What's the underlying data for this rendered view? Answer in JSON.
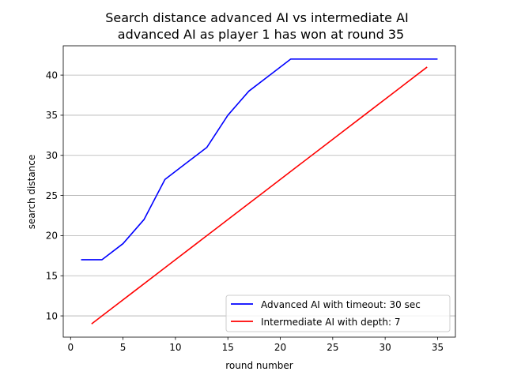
{
  "chart_data": {
    "type": "line",
    "title": "Search distance advanced AI vs intermediate AI",
    "subtitle": "advanced AI as player 1 has won at round 35",
    "xlabel": "round number",
    "ylabel": "search distance",
    "xlim": [
      -0.7,
      36.7
    ],
    "ylim": [
      7.35,
      43.65
    ],
    "xticks": [
      0,
      5,
      10,
      15,
      20,
      25,
      30,
      35
    ],
    "yticks": [
      10,
      15,
      20,
      25,
      30,
      35,
      40
    ],
    "grid": "horizontal",
    "legend_position": "lower-right",
    "series": [
      {
        "name": "Advanced AI with timeout: 30 sec",
        "color": "#0000ff",
        "x": [
          1,
          3,
          5,
          7,
          9,
          11,
          13,
          15,
          17,
          19,
          21,
          23,
          25,
          27,
          29,
          31,
          33,
          35
        ],
        "y": [
          17,
          17,
          19,
          22,
          27,
          29,
          31,
          35,
          38,
          40,
          42,
          42,
          42,
          42,
          42,
          42,
          42,
          42
        ]
      },
      {
        "name": "Intermediate AI with depth: 7",
        "color": "#ff0000",
        "x": [
          2,
          4,
          6,
          8,
          10,
          12,
          14,
          16,
          18,
          20,
          22,
          24,
          26,
          28,
          30,
          32,
          34
        ],
        "y": [
          9,
          11,
          13,
          15,
          17,
          19,
          21,
          23,
          25,
          27,
          29,
          31,
          33,
          35,
          37,
          39,
          41
        ]
      }
    ]
  }
}
